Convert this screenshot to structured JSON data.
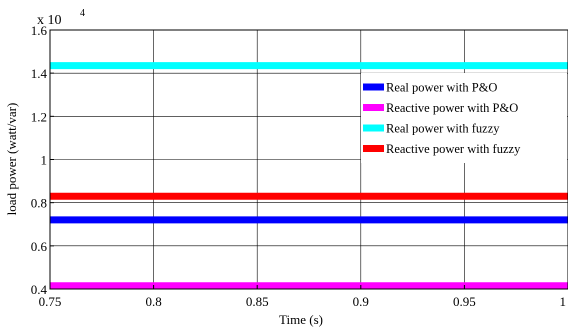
{
  "chart_data": {
    "type": "line",
    "xlabel": "Time (s)",
    "ylabel": "load power (watt/var)",
    "y_multiplier": "x 10",
    "y_exponent": "4",
    "xlim": [
      0.75,
      1.0
    ],
    "ylim": [
      0.4,
      1.6
    ],
    "x_ticks": [
      0.75,
      0.8,
      0.85,
      0.9,
      0.95,
      1.0
    ],
    "x_tick_labels": [
      "0.75",
      "0.8",
      "0.85",
      "0.9",
      "0.95",
      "1"
    ],
    "y_ticks": [
      0.4,
      0.6,
      0.8,
      1.0,
      1.2,
      1.4,
      1.6
    ],
    "y_tick_labels": [
      "0.4",
      "0.6",
      "0.8",
      "1",
      "1.2",
      "1.4",
      "1.6"
    ],
    "grid": true,
    "legend_position": "right",
    "series": [
      {
        "name": "Real power with P&O",
        "color": "#0000ff",
        "x": [
          0.75,
          1.0
        ],
        "y": [
          0.72,
          0.72
        ]
      },
      {
        "name": "Reactive power with P&O",
        "color": "#ff00ff",
        "x": [
          0.75,
          1.0
        ],
        "y": [
          0.415,
          0.415
        ]
      },
      {
        "name": "Real power with fuzzy",
        "color": "#00ffff",
        "x": [
          0.75,
          1.0
        ],
        "y": [
          1.435,
          1.435
        ]
      },
      {
        "name": "Reactive power with fuzzy",
        "color": "#ff0000",
        "x": [
          0.75,
          1.0
        ],
        "y": [
          0.83,
          0.83
        ]
      }
    ]
  }
}
